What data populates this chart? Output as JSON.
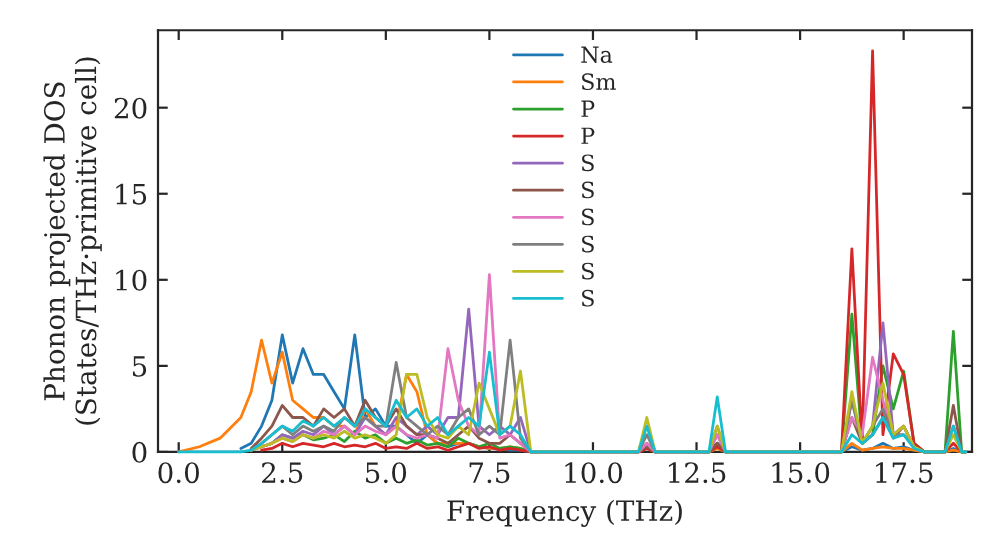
{
  "chart_data": {
    "type": "line",
    "xlabel": "Frequency (THz)",
    "ylabel": "Phonon projected DOS\n(States/THz·primitive cell)",
    "x": [
      0,
      0.5,
      1,
      1.5,
      1.75,
      2,
      2.25,
      2.5,
      2.75,
      3,
      3.25,
      3.5,
      3.75,
      4,
      4.25,
      4.5,
      4.75,
      5,
      5.25,
      5.5,
      5.75,
      6,
      6.25,
      6.5,
      6.75,
      7,
      7.25,
      7.5,
      7.75,
      8,
      8.25,
      8.5,
      8.75,
      11.1,
      11.3,
      11.5,
      12.8,
      13.0,
      13.2,
      16.0,
      16.25,
      16.5,
      16.75,
      17.0,
      17.25,
      17.5,
      17.75,
      18.0,
      18.25,
      18.5,
      18.7,
      18.9,
      19.0
    ],
    "xlim": [
      -0.5,
      19.15
    ],
    "ylim": [
      0,
      24.5
    ],
    "xticks": [
      {
        "value": 0,
        "label": "0.0"
      },
      {
        "value": 2.5,
        "label": "2.5"
      },
      {
        "value": 5,
        "label": "5.0"
      },
      {
        "value": 7.5,
        "label": "7.5"
      },
      {
        "value": 10,
        "label": "10.0"
      },
      {
        "value": 12.5,
        "label": "12.5"
      },
      {
        "value": 15,
        "label": "15.0"
      },
      {
        "value": 17.5,
        "label": "17.5"
      }
    ],
    "yticks": [
      0,
      5,
      10,
      15,
      20
    ],
    "grid": false,
    "legend": "top",
    "series": [
      {
        "name": "Na",
        "color": "#1f77b4",
        "values": [
          null,
          null,
          null,
          0.2,
          0.5,
          1.5,
          3,
          6.8,
          4,
          6,
          4.5,
          4.5,
          3.5,
          2.5,
          6.8,
          2,
          2.5,
          1.5,
          1.5,
          1,
          0.5,
          1,
          0.5,
          0.3,
          0.5,
          0.5,
          0.3,
          0.2,
          0.2,
          0.1,
          0.1,
          0,
          null,
          0,
          0.3,
          0,
          0,
          0.5,
          0,
          0,
          0.3,
          0.1,
          0.2,
          0.5,
          0.2,
          0.3,
          0.1,
          0,
          0,
          0,
          0.2,
          0,
          0
        ]
      },
      {
        "name": "Sm",
        "color": "#ff7f0e",
        "values": [
          0,
          0.3,
          0.8,
          2,
          3.5,
          6.5,
          4,
          5.8,
          3,
          2.5,
          2,
          2,
          1.5,
          1.5,
          1,
          2.5,
          1.5,
          1,
          1.5,
          4.5,
          3.5,
          1,
          0.5,
          0.5,
          0.5,
          0.5,
          0.3,
          0.2,
          0.2,
          0.3,
          0.2,
          0,
          null,
          0,
          0.2,
          0,
          0,
          0.2,
          0,
          0,
          0.5,
          0.1,
          0.2,
          0.3,
          0.2,
          0.2,
          0.1,
          0,
          0,
          0,
          0.1,
          0,
          0
        ]
      },
      {
        "name": "P",
        "color": "#2ca02c",
        "values": [
          null,
          null,
          null,
          null,
          0.1,
          0.3,
          0.5,
          1,
          0.8,
          1,
          0.7,
          0.8,
          1,
          0.6,
          1.2,
          0.8,
          1,
          0.5,
          0.8,
          0.5,
          0.7,
          0.4,
          0.5,
          0.3,
          0.8,
          0.5,
          0.3,
          0.5,
          0.2,
          0.3,
          0.2,
          0,
          null,
          0,
          0.3,
          0,
          0,
          0.5,
          0,
          0,
          8,
          0.5,
          1,
          5,
          2.5,
          4.7,
          0.5,
          0,
          0,
          0,
          7,
          0,
          0
        ]
      },
      {
        "name": "P",
        "color": "#d62728",
        "values": [
          null,
          null,
          null,
          null,
          null,
          0.1,
          0.2,
          0.5,
          0.3,
          0.5,
          0.4,
          0.3,
          0.5,
          0.3,
          0.4,
          0.3,
          0.5,
          0.2,
          0.3,
          0.2,
          0.5,
          0.2,
          0.3,
          0.1,
          0.3,
          0.5,
          0.2,
          0.3,
          0.1,
          0.2,
          0.1,
          0,
          null,
          0,
          0.2,
          0,
          0,
          0.3,
          0,
          0,
          11.8,
          0.5,
          23.3,
          1,
          5.7,
          4.5,
          0.5,
          0,
          0,
          0,
          0.5,
          0,
          0
        ]
      },
      {
        "name": "S",
        "color": "#9467bd",
        "values": [
          null,
          null,
          null,
          null,
          0.1,
          0.3,
          0.5,
          1,
          0.8,
          1.2,
          1,
          1.5,
          1,
          1.5,
          1,
          2,
          1.5,
          1,
          2,
          1.5,
          1,
          1.5,
          1,
          2,
          2,
          8.3,
          1.5,
          1,
          1.5,
          1,
          2,
          0,
          null,
          0,
          0.5,
          0,
          0,
          1,
          0,
          0,
          3,
          0.5,
          1.5,
          7.5,
          1,
          1.5,
          0.3,
          null,
          null,
          null,
          null,
          null,
          null
        ]
      },
      {
        "name": "S",
        "color": "#8c564b",
        "values": [
          null,
          null,
          null,
          null,
          0.2,
          0.8,
          1.5,
          2.7,
          2,
          2,
          1.5,
          2.5,
          2,
          2.5,
          1.5,
          3,
          2,
          1.5,
          2.5,
          1.5,
          1,
          1,
          0.8,
          0.5,
          1,
          1.5,
          0.8,
          0.5,
          0.5,
          1,
          0.5,
          0,
          null,
          0,
          0.3,
          0,
          0,
          0.5,
          0,
          0,
          2,
          0.5,
          1,
          2,
          0.8,
          1.5,
          0.3,
          0,
          0,
          0,
          2.7,
          0,
          0
        ]
      },
      {
        "name": "S",
        "color": "#e377c2",
        "values": [
          null,
          null,
          null,
          null,
          0.1,
          0.3,
          0.5,
          0.8,
          0.6,
          1,
          0.8,
          1.2,
          1,
          1.5,
          1,
          1.5,
          1.2,
          1,
          1.5,
          1,
          0.8,
          1,
          0.8,
          6,
          3,
          1.5,
          1,
          10.3,
          0.8,
          1,
          0.5,
          0,
          null,
          0,
          0.5,
          0,
          0,
          1,
          0,
          0,
          2,
          1,
          5.5,
          3,
          1,
          1.5,
          0.3,
          null,
          null,
          null,
          null,
          null,
          null
        ]
      },
      {
        "name": "S",
        "color": "#7f7f7f",
        "values": [
          null,
          null,
          null,
          null,
          0.1,
          0.5,
          1,
          1.5,
          1,
          1.5,
          1.2,
          1.5,
          1.2,
          2,
          1.5,
          2,
          1.5,
          1.5,
          5.2,
          2,
          1.5,
          1,
          1.5,
          1,
          2,
          2.5,
          1,
          1.5,
          1,
          6.5,
          0.8,
          0,
          null,
          0,
          1,
          0,
          0,
          1.5,
          0,
          0,
          3,
          0.5,
          1.5,
          2.5,
          1,
          1,
          0.3,
          0,
          0,
          0,
          1.5,
          0,
          0
        ]
      },
      {
        "name": "S",
        "color": "#bcbd22",
        "values": [
          null,
          null,
          null,
          null,
          0.1,
          0.3,
          0.5,
          0.8,
          0.6,
          1,
          0.8,
          1,
          0.8,
          1.2,
          0.8,
          1,
          0.8,
          0.5,
          1,
          4.5,
          4.5,
          2,
          1,
          0.8,
          1.5,
          1,
          4,
          2.5,
          1,
          1.5,
          4.7,
          0,
          null,
          0,
          2,
          0,
          0,
          1.5,
          0,
          0,
          3.5,
          0.5,
          1.5,
          4,
          1,
          1.5,
          0.3,
          0,
          0,
          0,
          1,
          0,
          0
        ]
      },
      {
        "name": "S",
        "color": "#17becf",
        "values": [
          0,
          0,
          0,
          0,
          0.1,
          0.5,
          1,
          1.5,
          1.2,
          1.8,
          1.5,
          2,
          1.5,
          2,
          1.5,
          2.5,
          2,
          1.5,
          3,
          2,
          2.5,
          1.5,
          2,
          1,
          1.5,
          2,
          1.5,
          5.8,
          1,
          1.5,
          1,
          0,
          0,
          0,
          1.5,
          0,
          0,
          3.2,
          0,
          0,
          1,
          0.5,
          1,
          2,
          0.8,
          1,
          0.2,
          0,
          0,
          0,
          1.5,
          0,
          0
        ]
      }
    ]
  }
}
